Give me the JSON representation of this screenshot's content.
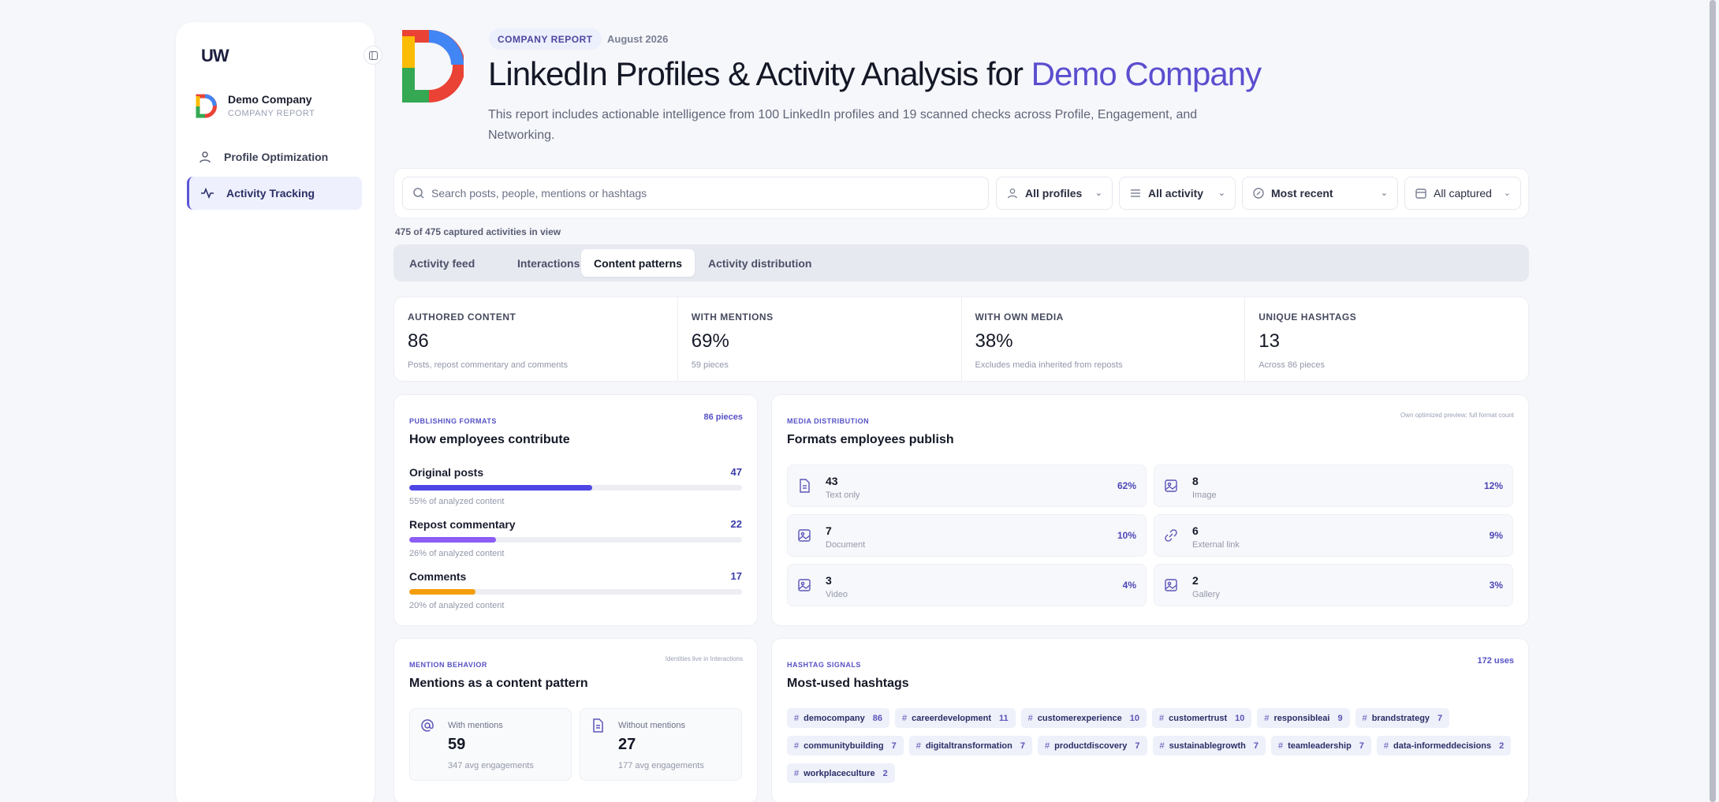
{
  "sidebar": {
    "logo_text": "UW",
    "company_name": "Demo Company",
    "company_sub": "COMPANY REPORT",
    "nav": [
      {
        "label": "Profile Optimization",
        "icon": "user-icon"
      },
      {
        "label": "Activity Tracking",
        "icon": "activity-icon"
      }
    ]
  },
  "header": {
    "badge": "COMPANY REPORT",
    "date": "August 2026",
    "title_prefix": "LinkedIn Profiles & Activity Analysis for",
    "title_accent": "Demo Company",
    "description": "This report includes actionable intelligence from 100 LinkedIn profiles and 19 scanned checks across Profile, Engagement, and Networking."
  },
  "filters": {
    "search_placeholder": "Search posts, people, mentions or hashtags",
    "profiles": "All profiles",
    "activity": "All activity",
    "sort": "Most recent",
    "captured": "All captured"
  },
  "count_line": "475 of 475 captured activities in view",
  "tabs": [
    {
      "label": "Activity feed",
      "active": false
    },
    {
      "label": "Interactions",
      "active": false
    },
    {
      "label": "Content patterns",
      "active": true
    },
    {
      "label": "Activity distribution",
      "active": false
    }
  ],
  "kpis": [
    {
      "label": "AUTHORED CONTENT",
      "value": "86",
      "sub": "Posts, repost commentary and comments"
    },
    {
      "label": "WITH MENTIONS",
      "value": "69%",
      "sub": "59 pieces"
    },
    {
      "label": "WITH OWN MEDIA",
      "value": "38%",
      "sub": "Excludes media inherited from reposts"
    },
    {
      "label": "UNIQUE HASHTAGS",
      "value": "13",
      "sub": "Across 86 pieces"
    }
  ],
  "publishing": {
    "eyebrow": "PUBLISHING FORMATS",
    "title": "How employees contribute",
    "corner": "86 pieces",
    "rows": [
      {
        "label": "Original posts",
        "value": "47",
        "share": 0.55,
        "sub": "55% of analyzed content",
        "color": "#4f46e5"
      },
      {
        "label": "Repost commentary",
        "value": "22",
        "share": 0.26,
        "sub": "26% of analyzed content",
        "color": "#8b5cf6"
      },
      {
        "label": "Comments",
        "value": "17",
        "share": 0.2,
        "sub": "20% of analyzed content",
        "color": "#f59e0b"
      }
    ]
  },
  "media": {
    "eyebrow": "MEDIA DISTRIBUTION",
    "title": "Formats employees publish",
    "corner": "Own optimized preview; full format count",
    "tiles": [
      {
        "count": "43",
        "label": "Text only",
        "pct": "62%",
        "icon": "document-icon"
      },
      {
        "count": "8",
        "label": "Image",
        "pct": "12%",
        "icon": "image-icon"
      },
      {
        "count": "7",
        "label": "Document",
        "pct": "10%",
        "icon": "image-icon"
      },
      {
        "count": "6",
        "label": "External link",
        "pct": "9%",
        "icon": "link-icon"
      },
      {
        "count": "3",
        "label": "Video",
        "pct": "4%",
        "icon": "image-icon"
      },
      {
        "count": "2",
        "label": "Gallery",
        "pct": "3%",
        "icon": "image-icon"
      }
    ]
  },
  "mentions": {
    "eyebrow": "MENTION BEHAVIOR",
    "title": "Mentions as a content pattern",
    "corner": "Identities live in Interactions",
    "with": {
      "label": "With mentions",
      "value": "59",
      "sub": "347 avg engagements"
    },
    "without": {
      "label": "Without mentions",
      "value": "27",
      "sub": "177 avg engagements"
    }
  },
  "hashtags": {
    "eyebrow": "HASHTAG SIGNALS",
    "title": "Most-used hashtags",
    "corner": "172 uses",
    "items": [
      {
        "tag": "democompany",
        "count": "86"
      },
      {
        "tag": "careerdevelopment",
        "count": "11"
      },
      {
        "tag": "customerexperience",
        "count": "10"
      },
      {
        "tag": "customertrust",
        "count": "10"
      },
      {
        "tag": "responsibleai",
        "count": "9"
      },
      {
        "tag": "brandstrategy",
        "count": "7"
      },
      {
        "tag": "communitybuilding",
        "count": "7"
      },
      {
        "tag": "digitaltransformation",
        "count": "7"
      },
      {
        "tag": "productdiscovery",
        "count": "7"
      },
      {
        "tag": "sustainablegrowth",
        "count": "7"
      },
      {
        "tag": "teamleadership",
        "count": "7"
      },
      {
        "tag": "data-informeddecisions",
        "count": "2"
      },
      {
        "tag": "workplaceculture",
        "count": "2"
      }
    ]
  },
  "colors": {
    "accent": "#5b4ecf",
    "bar_posts": "#4f46e5",
    "bar_repost": "#8b5cf6",
    "bar_comments": "#f59e0b"
  }
}
